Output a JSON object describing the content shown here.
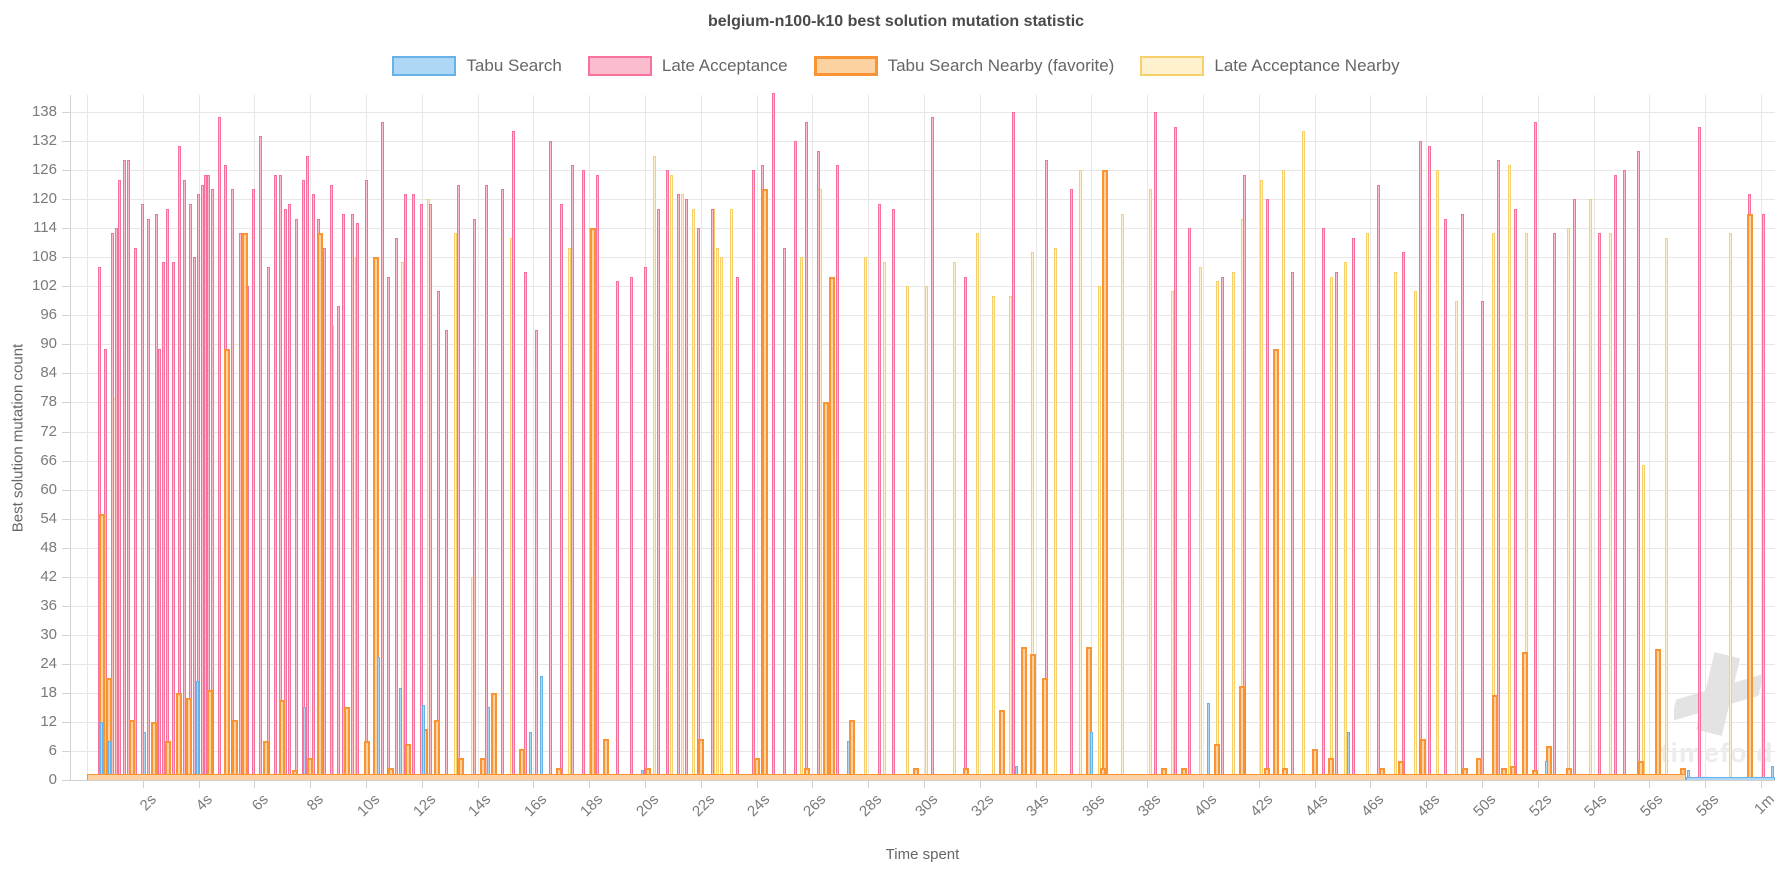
{
  "watermark": {
    "label": "timefold"
  },
  "chart_data": {
    "type": "bar",
    "title": "belgium-n100-k10 best solution mutation statistic",
    "xlabel": "Time spent",
    "ylabel": "Best solution mutation count",
    "legend_position": "top",
    "grid": true,
    "ylim": [
      0,
      141
    ],
    "xlim_seconds": [
      -0.6,
      60.5
    ],
    "y_ticks": [
      0,
      6,
      12,
      18,
      24,
      30,
      36,
      42,
      48,
      54,
      60,
      66,
      72,
      78,
      84,
      90,
      96,
      102,
      108,
      114,
      120,
      126,
      132,
      138
    ],
    "x_ticks": [
      {
        "label": "2s",
        "t": 2
      },
      {
        "label": "4s",
        "t": 4
      },
      {
        "label": "6s",
        "t": 6
      },
      {
        "label": "8s",
        "t": 8
      },
      {
        "label": "10s",
        "t": 10
      },
      {
        "label": "12s",
        "t": 12
      },
      {
        "label": "14s",
        "t": 14
      },
      {
        "label": "16s",
        "t": 16
      },
      {
        "label": "18s",
        "t": 18
      },
      {
        "label": "20s",
        "t": 20
      },
      {
        "label": "22s",
        "t": 22
      },
      {
        "label": "24s",
        "t": 24
      },
      {
        "label": "26s",
        "t": 26
      },
      {
        "label": "28s",
        "t": 28
      },
      {
        "label": "30s",
        "t": 30
      },
      {
        "label": "32s",
        "t": 32
      },
      {
        "label": "34s",
        "t": 34
      },
      {
        "label": "36s",
        "t": 36
      },
      {
        "label": "38s",
        "t": 38
      },
      {
        "label": "40s",
        "t": 40
      },
      {
        "label": "42s",
        "t": 42
      },
      {
        "label": "44s",
        "t": 44
      },
      {
        "label": "46s",
        "t": 46
      },
      {
        "label": "48s",
        "t": 48
      },
      {
        "label": "50s",
        "t": 50
      },
      {
        "label": "52s",
        "t": 52
      },
      {
        "label": "54s",
        "t": 54
      },
      {
        "label": "56s",
        "t": 56
      },
      {
        "label": "58s",
        "t": 58
      },
      {
        "label": "1m",
        "t": 60
      }
    ],
    "series": [
      {
        "name": "Tabu Search",
        "border_color": "#69b2e8",
        "fill_color": "#aed6f5",
        "points": [
          [
            0.5,
            12
          ],
          [
            0.8,
            8
          ],
          [
            2.05,
            10
          ],
          [
            3.95,
            20.5
          ],
          [
            7.8,
            15
          ],
          [
            10.45,
            25.5
          ],
          [
            11.25,
            19
          ],
          [
            12.05,
            15.5
          ],
          [
            14.4,
            15
          ],
          [
            15.9,
            10
          ],
          [
            16.3,
            21.5
          ],
          [
            19.9,
            2
          ],
          [
            27.3,
            8
          ],
          [
            33.3,
            3
          ],
          [
            36.0,
            10
          ],
          [
            40.2,
            16
          ],
          [
            45.2,
            10
          ],
          [
            52.3,
            4
          ],
          [
            57.4,
            2
          ],
          [
            60.4,
            3
          ]
        ]
      },
      {
        "name": "Late Acceptance",
        "border_color": "#f8719d",
        "fill_color": "#fbbccd",
        "points": [
          [
            0.45,
            106
          ],
          [
            0.65,
            89
          ],
          [
            0.9,
            113
          ],
          [
            1.05,
            114
          ],
          [
            1.15,
            124
          ],
          [
            1.35,
            128
          ],
          [
            1.5,
            128
          ],
          [
            1.75,
            110
          ],
          [
            2.0,
            119
          ],
          [
            2.2,
            116
          ],
          [
            2.5,
            117
          ],
          [
            2.6,
            89
          ],
          [
            2.75,
            107
          ],
          [
            2.9,
            118
          ],
          [
            3.1,
            107
          ],
          [
            3.3,
            131
          ],
          [
            3.5,
            124
          ],
          [
            3.7,
            119
          ],
          [
            3.85,
            108
          ],
          [
            4.0,
            121
          ],
          [
            4.15,
            123
          ],
          [
            4.25,
            125
          ],
          [
            4.35,
            125
          ],
          [
            4.5,
            122
          ],
          [
            4.75,
            137
          ],
          [
            4.95,
            127
          ],
          [
            5.2,
            122
          ],
          [
            5.5,
            113
          ],
          [
            5.75,
            102
          ],
          [
            5.95,
            122
          ],
          [
            6.2,
            133
          ],
          [
            6.5,
            106
          ],
          [
            6.75,
            125
          ],
          [
            6.95,
            125
          ],
          [
            7.1,
            118
          ],
          [
            7.25,
            119
          ],
          [
            7.5,
            116
          ],
          [
            7.75,
            124
          ],
          [
            7.9,
            129
          ],
          [
            8.1,
            121
          ],
          [
            8.3,
            116
          ],
          [
            8.5,
            110
          ],
          [
            8.75,
            123
          ],
          [
            9.0,
            98
          ],
          [
            9.2,
            117
          ],
          [
            9.5,
            117
          ],
          [
            9.7,
            115
          ],
          [
            10.0,
            124
          ],
          [
            10.3,
            92
          ],
          [
            10.6,
            136
          ],
          [
            10.8,
            104
          ],
          [
            11.1,
            112
          ],
          [
            11.4,
            121
          ],
          [
            11.7,
            121
          ],
          [
            12.0,
            119
          ],
          [
            12.3,
            119
          ],
          [
            12.6,
            101
          ],
          [
            12.9,
            93
          ],
          [
            13.3,
            123
          ],
          [
            13.9,
            116
          ],
          [
            14.3,
            123
          ],
          [
            14.9,
            122
          ],
          [
            15.3,
            134
          ],
          [
            15.7,
            105
          ],
          [
            16.1,
            93
          ],
          [
            16.6,
            132
          ],
          [
            17.0,
            119
          ],
          [
            17.4,
            127
          ],
          [
            17.8,
            126
          ],
          [
            18.3,
            125
          ],
          [
            19.0,
            103
          ],
          [
            19.5,
            104
          ],
          [
            20.0,
            106
          ],
          [
            20.5,
            118
          ],
          [
            20.8,
            126
          ],
          [
            21.2,
            121
          ],
          [
            21.5,
            120
          ],
          [
            21.9,
            114
          ],
          [
            22.4,
            118
          ],
          [
            23.3,
            104
          ],
          [
            23.9,
            126
          ],
          [
            24.2,
            127
          ],
          [
            24.6,
            142
          ],
          [
            25.0,
            110
          ],
          [
            25.4,
            132
          ],
          [
            25.8,
            136
          ],
          [
            26.2,
            130
          ],
          [
            26.9,
            127
          ],
          [
            28.4,
            119
          ],
          [
            28.9,
            118
          ],
          [
            30.3,
            137
          ],
          [
            31.5,
            104
          ],
          [
            33.2,
            138
          ],
          [
            34.4,
            128
          ],
          [
            35.3,
            122
          ],
          [
            36.5,
            122
          ],
          [
            38.3,
            138
          ],
          [
            39.0,
            135
          ],
          [
            39.5,
            114
          ],
          [
            40.7,
            104
          ],
          [
            41.5,
            125
          ],
          [
            42.3,
            120
          ],
          [
            43.2,
            105
          ],
          [
            44.3,
            114
          ],
          [
            44.8,
            105
          ],
          [
            45.4,
            112
          ],
          [
            46.3,
            123
          ],
          [
            47.2,
            109
          ],
          [
            47.8,
            132
          ],
          [
            48.1,
            131
          ],
          [
            48.7,
            116
          ],
          [
            49.3,
            117
          ],
          [
            50.0,
            99
          ],
          [
            50.6,
            128
          ],
          [
            51.2,
            118
          ],
          [
            51.9,
            136
          ],
          [
            52.6,
            113
          ],
          [
            53.3,
            120
          ],
          [
            54.2,
            113
          ],
          [
            54.8,
            125
          ],
          [
            55.1,
            126
          ],
          [
            55.6,
            130
          ],
          [
            57.8,
            135
          ],
          [
            59.6,
            121
          ],
          [
            60.1,
            117
          ]
        ]
      },
      {
        "name": "Tabu Search Nearby (favorite)",
        "border_color": "#f99333",
        "fill_color": "#fcd2a2",
        "points": [
          [
            0.55,
            55
          ],
          [
            5.0,
            89
          ],
          [
            5.65,
            113
          ],
          [
            8.35,
            113
          ],
          [
            10.35,
            108
          ],
          [
            18.15,
            114
          ],
          [
            24.3,
            122
          ],
          [
            26.5,
            78
          ],
          [
            26.7,
            104
          ],
          [
            36.5,
            126
          ],
          [
            42.6,
            89
          ],
          [
            59.6,
            117
          ],
          [
            0.8,
            21
          ],
          [
            1.6,
            12.5
          ],
          [
            2.4,
            12
          ],
          [
            2.9,
            8
          ],
          [
            3.3,
            18
          ],
          [
            3.65,
            17
          ],
          [
            4.4,
            18.5
          ],
          [
            5.3,
            12.5
          ],
          [
            6.4,
            8
          ],
          [
            7.0,
            16.5
          ],
          [
            7.45,
            2
          ],
          [
            8.0,
            4.5
          ],
          [
            9.3,
            15
          ],
          [
            10.05,
            8
          ],
          [
            10.9,
            2.5
          ],
          [
            11.5,
            7.5
          ],
          [
            12.1,
            10.5
          ],
          [
            12.55,
            12.5
          ],
          [
            13.4,
            4.5
          ],
          [
            14.2,
            4.5
          ],
          [
            14.6,
            18
          ],
          [
            15.6,
            6.5
          ],
          [
            16.9,
            2.5
          ],
          [
            18.6,
            8.5
          ],
          [
            20.1,
            2.5
          ],
          [
            22.0,
            8.5
          ],
          [
            24.0,
            4.5
          ],
          [
            25.8,
            2.5
          ],
          [
            27.4,
            12.5
          ],
          [
            29.7,
            2.5
          ],
          [
            31.5,
            2.5
          ],
          [
            32.8,
            14.5
          ],
          [
            33.6,
            27.5
          ],
          [
            33.9,
            26
          ],
          [
            34.35,
            21
          ],
          [
            35.9,
            27.5
          ],
          [
            36.4,
            2.5
          ],
          [
            38.6,
            2.5
          ],
          [
            39.3,
            2.5
          ],
          [
            40.5,
            7.5
          ],
          [
            41.4,
            19.5
          ],
          [
            42.3,
            2.5
          ],
          [
            42.95,
            2.5
          ],
          [
            44.0,
            6.5
          ],
          [
            44.6,
            4.5
          ],
          [
            46.4,
            2.5
          ],
          [
            47.1,
            4
          ],
          [
            47.9,
            8.5
          ],
          [
            49.4,
            2.5
          ],
          [
            49.9,
            4.5
          ],
          [
            50.45,
            17.5
          ],
          [
            50.8,
            2.5
          ],
          [
            51.1,
            3
          ],
          [
            51.55,
            26.5
          ],
          [
            51.9,
            2
          ],
          [
            52.4,
            7
          ],
          [
            53.1,
            2.5
          ],
          [
            55.7,
            4
          ],
          [
            56.3,
            27
          ],
          [
            57.2,
            2.5
          ]
        ]
      },
      {
        "name": "Late Acceptance Nearby",
        "border_color": "#f8d06b",
        "fill_color": "#fdf1ce",
        "points": [
          [
            1.0,
            79
          ],
          [
            1.35,
            55
          ],
          [
            2.6,
            81
          ],
          [
            8.8,
            94
          ],
          [
            9.6,
            108
          ],
          [
            11.3,
            107
          ],
          [
            12.25,
            120
          ],
          [
            13.2,
            113
          ],
          [
            13.8,
            42
          ],
          [
            15.2,
            112
          ],
          [
            17.3,
            110
          ],
          [
            18.05,
            114
          ],
          [
            20.35,
            129
          ],
          [
            20.95,
            125
          ],
          [
            21.35,
            121
          ],
          [
            21.75,
            118
          ],
          [
            22.45,
            118
          ],
          [
            22.6,
            110
          ],
          [
            22.75,
            108
          ],
          [
            23.1,
            118
          ],
          [
            25.6,
            108
          ],
          [
            26.3,
            122
          ],
          [
            27.9,
            108
          ],
          [
            28.6,
            107
          ],
          [
            29.4,
            102
          ],
          [
            30.1,
            102
          ],
          [
            31.1,
            107
          ],
          [
            31.9,
            113
          ],
          [
            32.5,
            100
          ],
          [
            33.1,
            100
          ],
          [
            33.9,
            109
          ],
          [
            34.7,
            110
          ],
          [
            35.6,
            126
          ],
          [
            36.3,
            102
          ],
          [
            37.1,
            117
          ],
          [
            38.1,
            122
          ],
          [
            38.9,
            101
          ],
          [
            39.9,
            106
          ],
          [
            40.5,
            103
          ],
          [
            41.1,
            105
          ],
          [
            41.4,
            116
          ],
          [
            42.1,
            124
          ],
          [
            42.9,
            126
          ],
          [
            43.6,
            134
          ],
          [
            44.6,
            104
          ],
          [
            45.1,
            107
          ],
          [
            45.9,
            113
          ],
          [
            46.9,
            105
          ],
          [
            47.6,
            101
          ],
          [
            48.4,
            126
          ],
          [
            49.1,
            99
          ],
          [
            50.4,
            113
          ],
          [
            51.0,
            127
          ],
          [
            51.6,
            113
          ],
          [
            53.1,
            114
          ],
          [
            53.9,
            120
          ],
          [
            54.6,
            113
          ],
          [
            55.8,
            65
          ],
          [
            56.6,
            112
          ],
          [
            58.9,
            113
          ]
        ]
      }
    ],
    "baseline_runs": [
      {
        "series": "Tabu Search Nearby (favorite)",
        "from": 0,
        "to": 57.3,
        "value": 1
      },
      {
        "series": "Tabu Search",
        "from": 57.3,
        "to": 60.5,
        "value": 0.5
      }
    ]
  }
}
